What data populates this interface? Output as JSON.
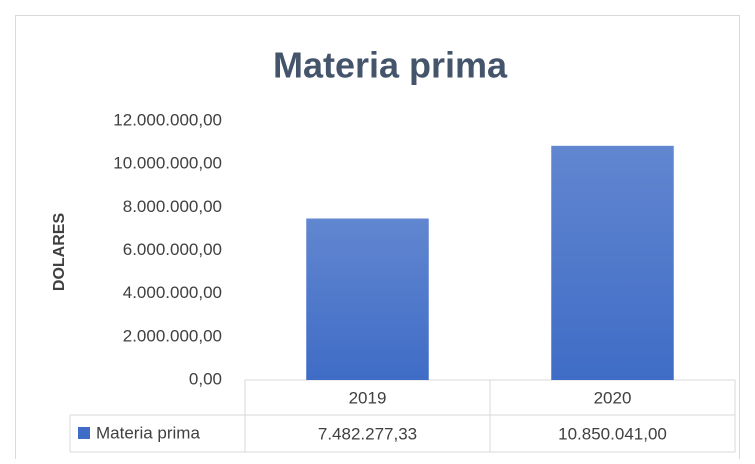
{
  "chart_data": {
    "type": "bar",
    "title": "Materia prima",
    "y_label": "DOLARES",
    "categories": [
      "2019",
      "2020"
    ],
    "series": [
      {
        "name": "Materia prima",
        "color": "#3f6cc6",
        "values": [
          7482277.33,
          10850041
        ],
        "value_labels": [
          "7.482.277,33",
          "10.850.041,00"
        ]
      }
    ],
    "ylim": [
      0,
      12000000
    ],
    "yticks": [
      {
        "value": 0,
        "label": "0,00"
      },
      {
        "value": 2000000,
        "label": "2.000.000,00"
      },
      {
        "value": 4000000,
        "label": "4.000.000,00"
      },
      {
        "value": 6000000,
        "label": "6.000.000,00"
      },
      {
        "value": 8000000,
        "label": "8.000.000,00"
      },
      {
        "value": 10000000,
        "label": "10.000.000,00"
      },
      {
        "value": 12000000,
        "label": "12.000.000,00"
      }
    ],
    "grid": false
  }
}
